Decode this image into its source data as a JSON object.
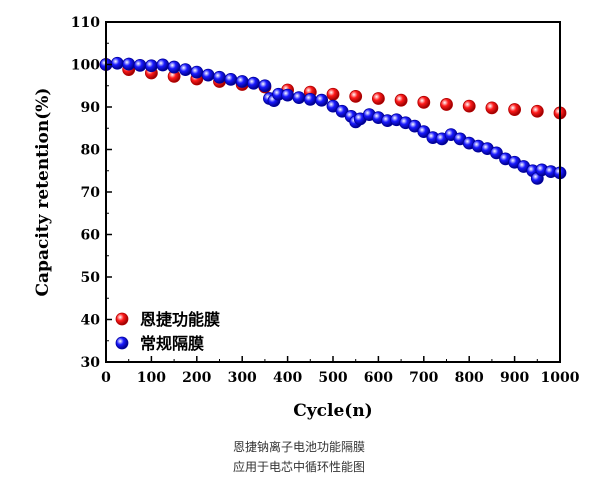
{
  "caption": {
    "line1": "恩捷钠离子电池功能隔膜",
    "line2": "应用于电芯中循环性能图"
  },
  "chart_data": {
    "type": "scatter",
    "xlabel": "Cycle(n)",
    "ylabel": "Capacity retention(%)",
    "xlim": [
      0,
      1000
    ],
    "ylim": [
      30,
      110
    ],
    "xticks": [
      0,
      100,
      200,
      300,
      400,
      500,
      600,
      700,
      800,
      900,
      1000
    ],
    "yticks": [
      30,
      40,
      50,
      60,
      70,
      80,
      90,
      100,
      110
    ],
    "grid": false,
    "legend_position": "bottom-left",
    "series": [
      {
        "name": "恩捷功能膜",
        "color": "#ff1a1a",
        "x": [
          0,
          50,
          100,
          150,
          200,
          250,
          300,
          350,
          400,
          450,
          500,
          550,
          600,
          650,
          700,
          750,
          800,
          850,
          900,
          950,
          1000
        ],
        "y": [
          100,
          98.8,
          98.0,
          97.2,
          96.6,
          96.0,
          95.3,
          94.7,
          94.0,
          93.5,
          93.0,
          92.5,
          92.0,
          91.6,
          91.1,
          90.6,
          90.2,
          89.8,
          89.4,
          89.0,
          88.6
        ]
      },
      {
        "name": "常规隔膜",
        "color": "#1a1aff",
        "x": [
          0,
          25,
          50,
          75,
          100,
          125,
          150,
          175,
          200,
          225,
          250,
          275,
          300,
          325,
          350,
          360,
          370,
          380,
          400,
          425,
          450,
          475,
          500,
          520,
          540,
          550,
          560,
          580,
          600,
          620,
          640,
          660,
          680,
          700,
          720,
          740,
          760,
          780,
          800,
          820,
          840,
          860,
          880,
          900,
          920,
          940,
          950,
          960,
          980,
          1000
        ],
        "y": [
          100,
          100.3,
          100.1,
          99.8,
          99.7,
          99.9,
          99.4,
          98.8,
          98.2,
          97.5,
          97.0,
          96.5,
          96.0,
          95.6,
          95.0,
          92.0,
          91.5,
          93.0,
          92.8,
          92.2,
          91.8,
          91.6,
          90.2,
          89.0,
          87.8,
          86.5,
          87.2,
          88.2,
          87.5,
          86.8,
          87.0,
          86.3,
          85.5,
          84.2,
          82.8,
          82.5,
          83.5,
          82.5,
          81.5,
          80.8,
          80.2,
          79.2,
          77.8,
          77.0,
          76.0,
          75.0,
          73.2,
          75.2,
          74.8,
          74.5
        ]
      }
    ]
  }
}
